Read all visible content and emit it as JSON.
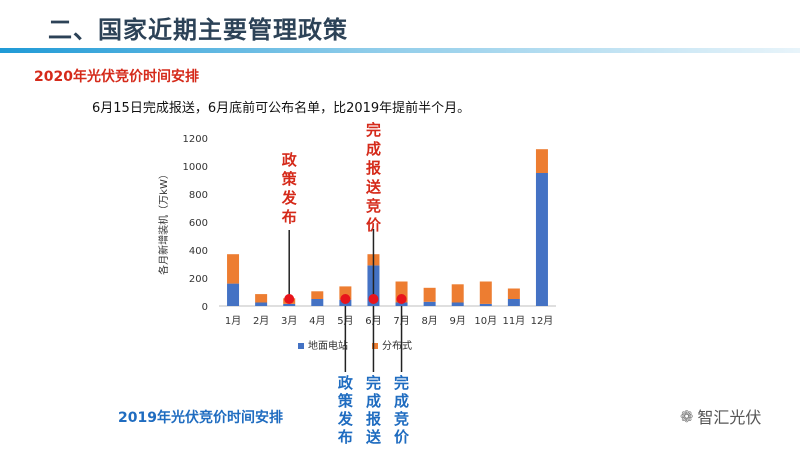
{
  "header": {
    "title": "二、国家近期主要管理政策",
    "subtitle_2020": "2020年光伏竞价时间安排",
    "description": "6月15日完成报送，6月底前可公布名单，比2019年提前半个月。",
    "subtitle_2019": "2019年光伏竞价时间安排"
  },
  "watermark": {
    "icon": "wechat-icon",
    "text": "智汇光伏"
  },
  "colors": {
    "ground": "#4472c4",
    "distributed": "#ed7d31",
    "marker": "#e8141b",
    "red_text": "#d52a1a",
    "blue_text": "#1f6cc0",
    "title": "#2c4257"
  },
  "chart_data": {
    "type": "bar",
    "stacked": true,
    "ylabel": "各月新增装机（万kW）",
    "ylim": [
      0,
      1200
    ],
    "yticks": [
      0,
      200,
      400,
      600,
      800,
      1000,
      1200
    ],
    "categories": [
      "1月",
      "2月",
      "3月",
      "4月",
      "5月",
      "6月",
      "7月",
      "8月",
      "9月",
      "10月",
      "11月",
      "12月"
    ],
    "series": [
      {
        "name": "地面电站",
        "color": "#4472c4",
        "values": [
          160,
          25,
          15,
          50,
          45,
          290,
          25,
          30,
          25,
          15,
          50,
          950
        ]
      },
      {
        "name": "分布式",
        "color": "#ed7d31",
        "values": [
          210,
          60,
          40,
          55,
          95,
          80,
          150,
          100,
          130,
          160,
          75,
          170
        ]
      }
    ],
    "legend_position": "bottom",
    "grid": false,
    "annotations_2020": [
      {
        "text": "政策发布",
        "month": "3月"
      },
      {
        "text": "完成报送竞价",
        "month": "6月"
      }
    ],
    "annotations_2019": [
      {
        "text": "政策发布",
        "month": "5月"
      },
      {
        "text": "完成报送",
        "month": "6月"
      },
      {
        "text": "完成竞价",
        "month": "7月"
      }
    ],
    "marker_months": [
      "3月",
      "5月",
      "6月",
      "7月"
    ]
  }
}
